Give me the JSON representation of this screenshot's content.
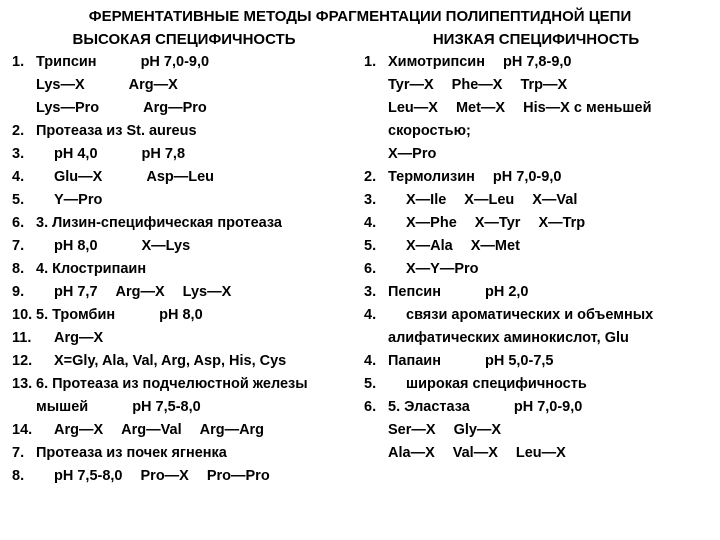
{
  "title": "ФЕРМЕНТАТИВНЫЕ МЕТОДЫ ФРАГМЕНТАЦИИ ПОЛИПЕПТИДНОЙ ЦЕПИ",
  "left": {
    "heading": "ВЫСОКАЯ СПЕЦИФИЧНОСТЬ",
    "lines": [
      {
        "n": "1.",
        "t": "Трипсин          pH 7,0-9,0"
      },
      {
        "n": "",
        "t": "Lys—X           Arg—X"
      },
      {
        "n": "",
        "t": "Lys—Pro        Arg—Pro"
      },
      {
        "n": "2.",
        "t": "Протеаза из St. aureus"
      },
      {
        "n": "3.",
        "t": "    pH 4,0               pH 7,8"
      },
      {
        "n": "4.",
        "t": "    Glu—X               Asp—Leu"
      },
      {
        "n": "5.",
        "t": "    Y—Pro"
      },
      {
        "n": "6.",
        "t": "3.  Лизин-специфическая протеаза"
      },
      {
        "n": "7.",
        "t": "    pH 8,0               X—Lys"
      },
      {
        "n": "8.",
        "t": "4.  Клострипаин"
      },
      {
        "n": "9.",
        "t": "    pH 7,7     Arg—X   Lys—X"
      },
      {
        "n": "10.",
        "t": "5.  Тромбин           pH 8,0"
      },
      {
        "n": "11.",
        "t": "    Arg—X"
      },
      {
        "n": "12.",
        "t": "    X=Gly, Ala, Val, Arg, Asp, His, Cys"
      },
      {
        "n": "13.",
        "t": "6.  Протеаза из подчелюстной железы"
      },
      {
        "n": "",
        "t": "мышей              pH 7,5-8,0"
      },
      {
        "n": "14.",
        "t": "     Arg—X   Arg—Val   Arg—Arg"
      },
      {
        "n": "7.",
        "t": "Протеаза из почек ягненка"
      },
      {
        "n": "8.",
        "t": "    pH 7,5-8,0   Pro—X   Pro—Pro"
      }
    ]
  },
  "right": {
    "heading": "НИЗКАЯ СПЕЦИФИЧНОСТЬ",
    "lines": [
      {
        "n": "1.",
        "t": "Химотрипсин   pH 7,8-9,0"
      },
      {
        "n": "",
        "t": "Tyr—X   Phe—X   Trp—X"
      },
      {
        "n": "",
        "t": "Leu—X   Met—X   His—X с меньшей"
      },
      {
        "n": "",
        "t": "скоростью;"
      },
      {
        "n": "",
        "t": "X—Pro"
      },
      {
        "n": "2.",
        "t": "Термолизин     pH 7,0-9,0"
      },
      {
        "n": "3.",
        "t": "    X—Ile    X—Leu    X—Val"
      },
      {
        "n": "4.",
        "t": "    X—Phe   X—Tyr    X—Trp"
      },
      {
        "n": "5.",
        "t": "    X—Ala    X—Met"
      },
      {
        "n": "6.",
        "t": "    X—Y—Pro"
      },
      {
        "n": "3.",
        "t": "Пепсин              pH 2,0"
      },
      {
        "n": "4.",
        "t": "    связи ароматических и объемных"
      },
      {
        "n": "",
        "t": "алифатических аминокислот, Glu"
      },
      {
        "n": "4.",
        "t": "Папаин             pH 5,0-7,5"
      },
      {
        "n": "5.",
        "t": "    широкая специфичность"
      },
      {
        "n": "6.",
        "t": "5.  Эластаза        pH 7,0-9,0"
      },
      {
        "n": "",
        "t": "Ser—X      Gly—X"
      },
      {
        "n": "",
        "t": "Ala—X      Val—X      Leu—X"
      }
    ]
  }
}
